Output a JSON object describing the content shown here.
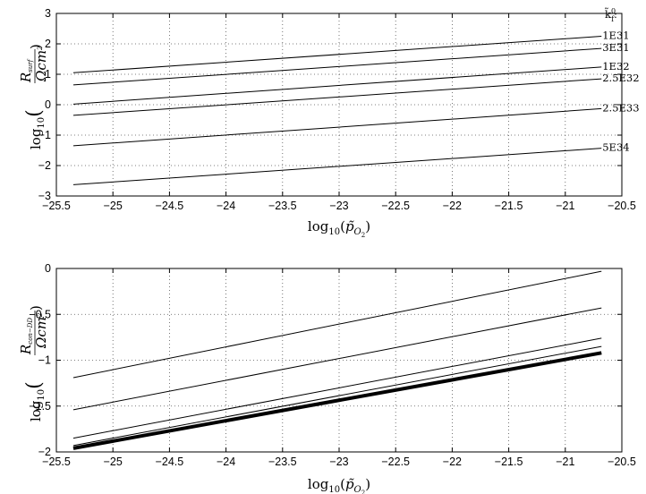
{
  "chart_data": [
    {
      "type": "line",
      "xlabel": "log10(p̃O2)",
      "ylabel": "log10(R surf / Ω cm²)",
      "xlim": [
        -25.5,
        -20.5
      ],
      "ylim": [
        -3,
        3
      ],
      "xticks": [
        "−25.5",
        "−25",
        "−24.5",
        "−24",
        "−23.5",
        "−23",
        "−22.5",
        "−22",
        "−21.5",
        "−21",
        "−20.5"
      ],
      "yticks": [
        "−3",
        "−2",
        "−1",
        "0",
        "1",
        "2",
        "3"
      ],
      "grid": true,
      "legend_title": "k̃f0:",
      "legend_placement": "right, at line ends",
      "series": [
        {
          "name": "1E31",
          "x": [
            -25.35,
            -20.68
          ],
          "y": [
            1.05,
            2.25
          ],
          "width": 1
        },
        {
          "name": "3E31",
          "x": [
            -25.35,
            -20.68
          ],
          "y": [
            0.65,
            1.85
          ],
          "width": 1
        },
        {
          "name": "1E32",
          "x": [
            -25.35,
            -20.68
          ],
          "y": [
            0.02,
            1.24
          ],
          "width": 1
        },
        {
          "name": "2.5E32",
          "x": [
            -25.35,
            -20.68
          ],
          "y": [
            -0.35,
            0.85
          ],
          "width": 1
        },
        {
          "name": "2.5E33",
          "x": [
            -25.35,
            -20.68
          ],
          "y": [
            -1.35,
            -0.13
          ],
          "width": 1
        },
        {
          "name": "5E34",
          "x": [
            -25.35,
            -20.68
          ],
          "y": [
            -2.63,
            -1.43
          ],
          "width": 1
        }
      ]
    },
    {
      "type": "line",
      "xlabel": "log10(p̃O2)",
      "ylabel": "log10(R con−DD / Ω cm²)",
      "xlim": [
        -25.5,
        -20.5
      ],
      "ylim": [
        -2,
        0
      ],
      "xticks": [
        "−25.5",
        "−25",
        "−24.5",
        "−24",
        "−23.5",
        "−23",
        "−22.5",
        "−22",
        "−21.5",
        "−21",
        "−20.5"
      ],
      "yticks": [
        "−2",
        "−1.5",
        "−1",
        "−0.5",
        "0"
      ],
      "grid": true,
      "series": [
        {
          "x": [
            -25.35,
            -20.68
          ],
          "y": [
            -1.19,
            -0.03
          ],
          "width": 1
        },
        {
          "x": [
            -25.35,
            -20.68
          ],
          "y": [
            -1.54,
            -0.43
          ],
          "width": 1
        },
        {
          "x": [
            -25.35,
            -20.68
          ],
          "y": [
            -1.85,
            -0.76
          ],
          "width": 1
        },
        {
          "x": [
            -25.35,
            -20.68
          ],
          "y": [
            -1.93,
            -0.85
          ],
          "width": 1
        },
        {
          "x": [
            -25.35,
            -20.68
          ],
          "y": [
            -1.96,
            -0.92
          ],
          "width": 4
        }
      ]
    }
  ]
}
